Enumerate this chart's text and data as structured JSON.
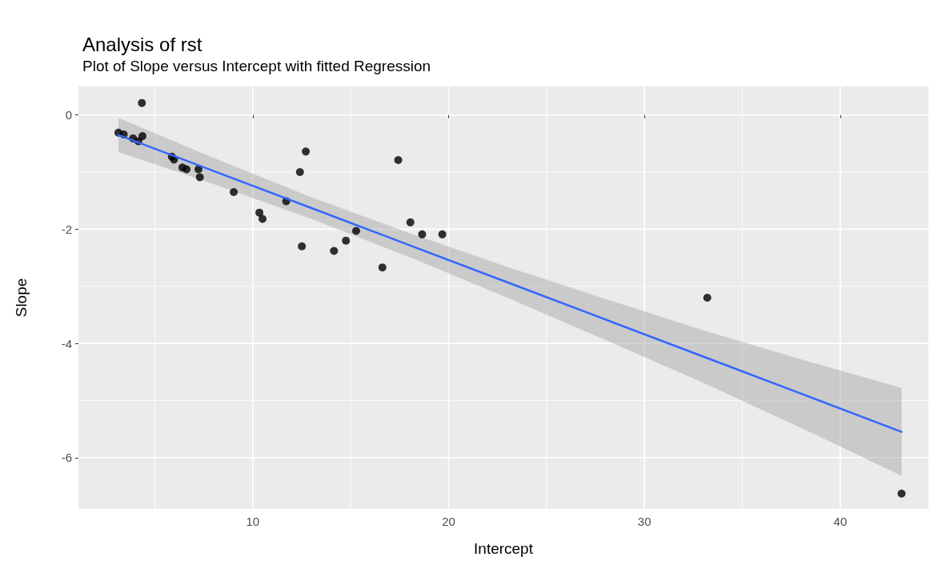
{
  "chart_data": {
    "type": "scatter",
    "title": "Analysis of rst",
    "subtitle": "Plot of Slope versus Intercept with fitted Regression",
    "xlabel": "Intercept",
    "ylabel": "Slope",
    "xlim": [
      1.1,
      44.5
    ],
    "ylim": [
      -6.9,
      0.5
    ],
    "xticks": [
      {
        "value": 5,
        "label": null
      },
      10,
      {
        "value": 15,
        "label": null
      },
      20,
      {
        "value": 25,
        "label": null
      },
      30,
      {
        "value": 35,
        "label": null
      },
      40
    ],
    "yticks": [
      {
        "value": -6,
        "label": "-6"
      },
      {
        "value": -5,
        "label": null
      },
      {
        "value": -4,
        "label": "-4"
      },
      {
        "value": -3,
        "label": null
      },
      {
        "value": -2,
        "label": "-2"
      },
      {
        "value": -1,
        "label": null
      },
      0
    ],
    "grid": true,
    "marker": "circle",
    "series": [
      {
        "color": "#000000",
        "x": [
          4.34,
          3.14,
          3.41,
          3.89,
          4.16,
          4.37,
          5.87,
          5.98,
          6.41,
          6.62,
          7.23,
          7.3,
          9.03,
          10.34,
          10.5,
          11.71,
          12.41,
          12.71,
          12.51,
          14.15,
          14.76,
          15.28,
          16.62,
          17.43,
          18.05,
          18.65,
          19.68,
          33.21,
          43.13
        ],
        "values": [
          0.21,
          -0.31,
          -0.34,
          -0.41,
          -0.46,
          -0.37,
          -0.73,
          -0.78,
          -0.92,
          -0.95,
          -0.95,
          -1.09,
          -1.35,
          -1.71,
          -1.82,
          -1.51,
          -1.0,
          -0.64,
          -2.3,
          -2.38,
          -2.2,
          -2.03,
          -2.67,
          -0.79,
          -1.88,
          -2.09,
          -2.09,
          -3.2,
          -6.63
        ]
      },
      {
        "type": "line",
        "color": "#3366ff",
        "marker": "none",
        "line_style": "solid",
        "x": [
          3.14,
          8,
          13,
          18,
          23,
          28,
          33,
          38,
          43.13
        ],
        "values": [
          -0.35,
          -0.98,
          -1.63,
          -2.28,
          -2.93,
          -3.58,
          -4.23,
          -4.88,
          -5.55
        ],
        "lower": [
          -0.65,
          -1.21,
          -1.82,
          -2.49,
          -3.2,
          -3.94,
          -4.69,
          -5.48,
          -6.32
        ],
        "upper": [
          -0.05,
          -0.75,
          -1.44,
          -2.07,
          -2.66,
          -3.22,
          -3.77,
          -4.28,
          -4.78
        ]
      }
    ]
  }
}
